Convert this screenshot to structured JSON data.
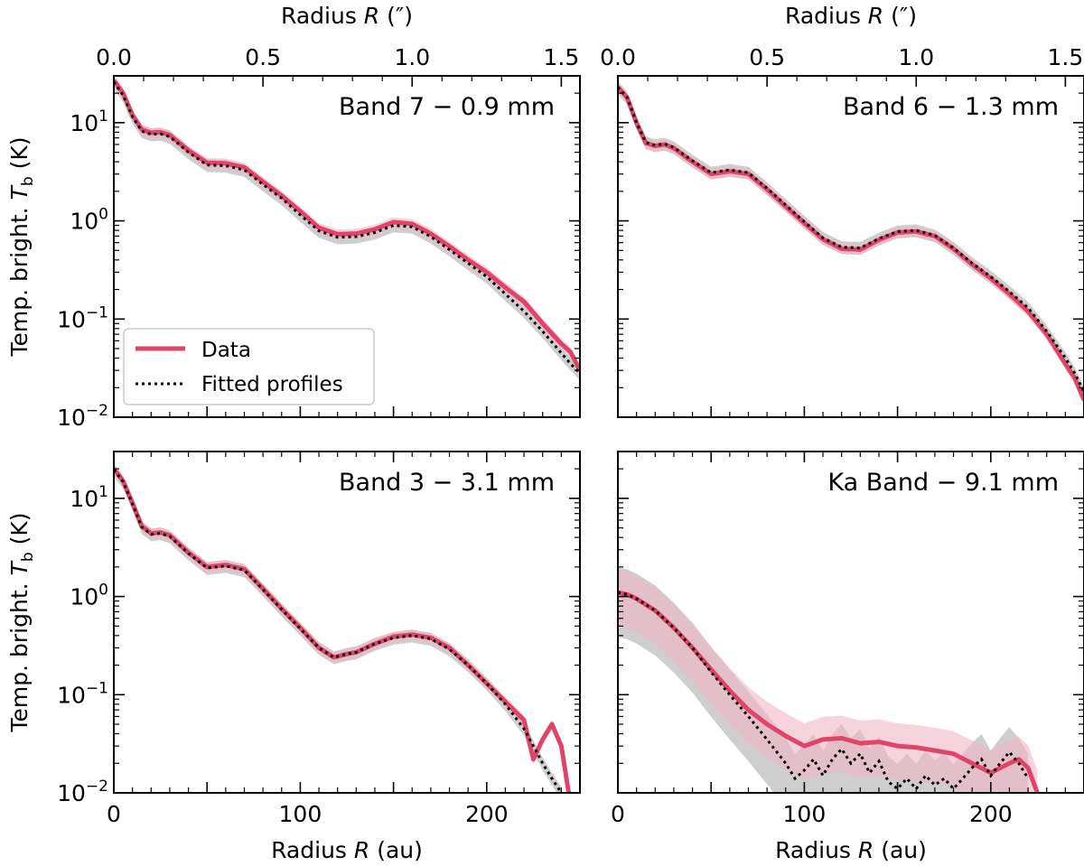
{
  "figure": {
    "top_axis_label": "Radius R (″)",
    "bottom_axis_label": "Radius R (au)",
    "y_axis_label": "Temp. bright. T_b (K)"
  },
  "colors": {
    "data": "#e0446a",
    "data_band": "#f2b8c6",
    "model": "#000000",
    "model_band": "#bdbdbd"
  },
  "legend": {
    "data_label": "Data",
    "model_label": "Fitted profiles"
  },
  "chart_data": [
    {
      "type": "line",
      "title": "Band 7 − 0.9 mm",
      "xlabel": "Radius R (au)",
      "ylabel": "Temp. bright. T_b (K)",
      "top_xlabel": "Radius R (″)",
      "xlim": [
        0,
        250
      ],
      "ylim": [
        0.01,
        30
      ],
      "yscale": "log",
      "legend": "lower-left",
      "xticks_bottom": [
        "0",
        "100",
        "200"
      ],
      "xticks_top": [
        "0.0",
        "0.5",
        "1.0",
        "1.5"
      ],
      "yticks": [
        "10^1",
        "10^0",
        "10^-1",
        "10^-2"
      ],
      "series": [
        {
          "name": "Data",
          "x": [
            0,
            5,
            10,
            15,
            20,
            25,
            30,
            40,
            50,
            60,
            70,
            80,
            90,
            100,
            110,
            120,
            130,
            140,
            150,
            160,
            170,
            180,
            190,
            200,
            210,
            220,
            230,
            240,
            245,
            250
          ],
          "values": [
            27,
            20,
            12,
            8.5,
            7.9,
            8.0,
            7.5,
            5.2,
            3.9,
            3.85,
            3.5,
            2.5,
            1.8,
            1.25,
            0.85,
            0.73,
            0.74,
            0.82,
            0.97,
            0.93,
            0.74,
            0.55,
            0.4,
            0.3,
            0.21,
            0.15,
            0.09,
            0.056,
            0.046,
            0.03
          ]
        },
        {
          "name": "Fitted profiles",
          "x": [
            0,
            5,
            10,
            15,
            20,
            25,
            30,
            40,
            50,
            60,
            70,
            80,
            90,
            100,
            110,
            120,
            130,
            140,
            150,
            160,
            170,
            180,
            190,
            200,
            210,
            220,
            230,
            240,
            245,
            250
          ],
          "values": [
            26,
            19,
            11.5,
            8.2,
            7.6,
            7.7,
            7.2,
            5.0,
            3.7,
            3.65,
            3.3,
            2.35,
            1.7,
            1.15,
            0.79,
            0.68,
            0.69,
            0.76,
            0.9,
            0.87,
            0.69,
            0.51,
            0.37,
            0.27,
            0.18,
            0.12,
            0.075,
            0.045,
            0.035,
            0.028
          ]
        }
      ]
    },
    {
      "type": "line",
      "title": "Band 6 − 1.3 mm",
      "xlabel": "Radius R (au)",
      "ylabel": "",
      "top_xlabel": "Radius R (″)",
      "xlim": [
        0,
        250
      ],
      "ylim": [
        0.01,
        30
      ],
      "yscale": "log",
      "xticks_bottom": [
        "0",
        "100",
        "200"
      ],
      "xticks_top": [
        "0.0",
        "0.5",
        "1.0",
        "1.5"
      ],
      "series": [
        {
          "name": "Data",
          "x": [
            0,
            5,
            10,
            15,
            20,
            25,
            30,
            40,
            50,
            60,
            70,
            80,
            90,
            100,
            110,
            120,
            130,
            140,
            150,
            160,
            170,
            180,
            190,
            200,
            210,
            220,
            230,
            240,
            245,
            250
          ],
          "values": [
            23,
            18,
            10,
            6.2,
            5.8,
            6.0,
            5.5,
            4.0,
            3.0,
            3.2,
            3.0,
            2.1,
            1.4,
            0.95,
            0.65,
            0.52,
            0.51,
            0.64,
            0.76,
            0.78,
            0.7,
            0.52,
            0.36,
            0.26,
            0.18,
            0.12,
            0.07,
            0.035,
            0.025,
            0.015
          ]
        },
        {
          "name": "Fitted profiles",
          "x": [
            0,
            5,
            10,
            15,
            20,
            25,
            30,
            40,
            50,
            60,
            70,
            80,
            90,
            100,
            110,
            120,
            130,
            140,
            150,
            160,
            170,
            180,
            190,
            200,
            210,
            220,
            230,
            240,
            245,
            250
          ],
          "values": [
            23,
            18,
            10,
            6.3,
            5.9,
            6.1,
            5.6,
            4.1,
            3.1,
            3.3,
            3.1,
            2.15,
            1.45,
            0.98,
            0.67,
            0.54,
            0.53,
            0.66,
            0.78,
            0.8,
            0.71,
            0.53,
            0.37,
            0.27,
            0.19,
            0.13,
            0.075,
            0.04,
            0.028,
            0.018
          ]
        }
      ]
    },
    {
      "type": "line",
      "title": "Band 3 − 3.1 mm",
      "xlabel": "Radius R (au)",
      "ylabel": "Temp. bright. T_b (K)",
      "xlim": [
        0,
        250
      ],
      "ylim": [
        0.01,
        30
      ],
      "yscale": "log",
      "xticks_bottom": [
        "0",
        "100",
        "200"
      ],
      "yticks": [
        "10^1",
        "10^0",
        "10^-1",
        "10^-2"
      ],
      "series": [
        {
          "name": "Data",
          "x": [
            0,
            5,
            10,
            15,
            20,
            25,
            30,
            40,
            50,
            60,
            70,
            80,
            90,
            100,
            110,
            118,
            125,
            130,
            140,
            150,
            160,
            170,
            180,
            190,
            200,
            210,
            220,
            225,
            230,
            235,
            240,
            244
          ],
          "values": [
            20,
            15,
            9,
            5.2,
            4.4,
            4.5,
            4.2,
            2.8,
            2.0,
            2.1,
            1.9,
            1.2,
            0.75,
            0.48,
            0.3,
            0.24,
            0.26,
            0.27,
            0.33,
            0.39,
            0.41,
            0.38,
            0.3,
            0.2,
            0.13,
            0.085,
            0.055,
            0.022,
            0.035,
            0.05,
            0.03,
            0.01
          ]
        },
        {
          "name": "Fitted profiles",
          "x": [
            0,
            5,
            10,
            15,
            20,
            25,
            30,
            40,
            50,
            60,
            70,
            80,
            90,
            100,
            110,
            118,
            125,
            130,
            140,
            150,
            160,
            170,
            180,
            190,
            200,
            210,
            220,
            225,
            230,
            235,
            240
          ],
          "values": [
            19.5,
            14.8,
            8.8,
            5.1,
            4.3,
            4.4,
            4.1,
            2.75,
            1.95,
            2.05,
            1.85,
            1.18,
            0.74,
            0.47,
            0.3,
            0.24,
            0.26,
            0.27,
            0.33,
            0.38,
            0.4,
            0.37,
            0.29,
            0.2,
            0.13,
            0.08,
            0.045,
            0.03,
            0.02,
            0.014,
            0.01
          ]
        }
      ]
    },
    {
      "type": "line",
      "title": "Ka Band − 9.1 mm",
      "xlabel": "Radius R (au)",
      "ylabel": "",
      "xlim": [
        0,
        250
      ],
      "ylim": [
        0.01,
        30
      ],
      "yscale": "log",
      "xticks_bottom": [
        "0",
        "100",
        "200"
      ],
      "series": [
        {
          "name": "Data",
          "x": [
            0,
            5,
            10,
            20,
            30,
            40,
            50,
            60,
            70,
            80,
            90,
            100,
            110,
            120,
            130,
            140,
            150,
            160,
            170,
            180,
            190,
            200,
            210,
            215,
            220,
            225
          ],
          "values": [
            1.1,
            1.05,
            0.95,
            0.72,
            0.48,
            0.3,
            0.18,
            0.11,
            0.07,
            0.05,
            0.038,
            0.03,
            0.035,
            0.036,
            0.032,
            0.033,
            0.03,
            0.029,
            0.027,
            0.025,
            0.02,
            0.016,
            0.02,
            0.022,
            0.018,
            0.01
          ]
        },
        {
          "name": "Fitted profiles",
          "x": [
            0,
            5,
            10,
            20,
            30,
            40,
            50,
            60,
            70,
            80,
            90,
            95,
            100,
            105,
            110,
            115,
            120,
            125,
            130,
            135,
            140,
            145,
            150,
            155,
            160,
            165,
            170,
            175,
            180,
            185,
            190,
            195,
            200,
            205,
            210,
            215,
            220
          ],
          "values": [
            1.1,
            1.05,
            0.95,
            0.72,
            0.48,
            0.3,
            0.17,
            0.1,
            0.06,
            0.035,
            0.02,
            0.014,
            0.017,
            0.022,
            0.015,
            0.022,
            0.028,
            0.02,
            0.025,
            0.016,
            0.021,
            0.013,
            0.011,
            0.014,
            0.011,
            0.015,
            0.012,
            0.014,
            0.011,
            0.014,
            0.018,
            0.022,
            0.015,
            0.02,
            0.026,
            0.02,
            0.014
          ]
        }
      ]
    }
  ]
}
